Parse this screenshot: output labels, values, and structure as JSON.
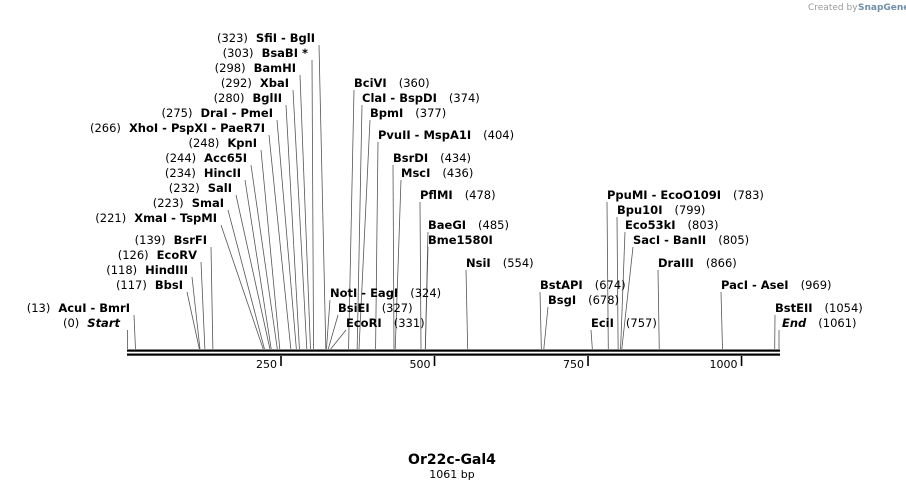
{
  "credit": {
    "prefix": "Created by",
    "brand": "SnapGene"
  },
  "map": {
    "name": "Or22c-Gal4",
    "length_label": "1061 bp",
    "total_bp": 1061,
    "ticks": [
      {
        "bp": 250,
        "label": "250"
      },
      {
        "bp": 500,
        "label": "500"
      },
      {
        "bp": 750,
        "label": "750"
      },
      {
        "bp": 1000,
        "label": "1000"
      }
    ],
    "sites": [
      {
        "id": "start",
        "pos_text": "(0)",
        "names": [
          "Start"
        ],
        "italic": true,
        "bp": 0,
        "side": "left"
      },
      {
        "id": "acui",
        "pos_text": "(13)",
        "names": [
          "AcuI",
          "BmrI"
        ],
        "bp": 13,
        "side": "left"
      },
      {
        "id": "bbsi",
        "pos_text": "(117)",
        "names": [
          "BbsI"
        ],
        "bp": 117,
        "side": "left"
      },
      {
        "id": "hindiii",
        "pos_text": "(118)",
        "names": [
          "HindIII"
        ],
        "bp": 118,
        "side": "left"
      },
      {
        "id": "ecorv",
        "pos_text": "(126)",
        "names": [
          "EcoRV"
        ],
        "bp": 126,
        "side": "left"
      },
      {
        "id": "bsrfi",
        "pos_text": "(139)",
        "names": [
          "BsrFI"
        ],
        "bp": 139,
        "side": "left"
      },
      {
        "id": "xmai",
        "pos_text": "(221)",
        "names": [
          "XmaI",
          "TspMI"
        ],
        "bp": 221,
        "side": "left"
      },
      {
        "id": "smai",
        "pos_text": "(223)",
        "names": [
          "SmaI"
        ],
        "bp": 223,
        "side": "left"
      },
      {
        "id": "sali",
        "pos_text": "(232)",
        "names": [
          "SalI"
        ],
        "bp": 232,
        "side": "left"
      },
      {
        "id": "hincii",
        "pos_text": "(234)",
        "names": [
          "HincII"
        ],
        "bp": 234,
        "side": "left"
      },
      {
        "id": "acc65i",
        "pos_text": "(244)",
        "names": [
          "Acc65I"
        ],
        "bp": 244,
        "side": "left"
      },
      {
        "id": "kpni",
        "pos_text": "(248)",
        "names": [
          "KpnI"
        ],
        "bp": 248,
        "side": "left"
      },
      {
        "id": "xhoi",
        "pos_text": "(266)",
        "names": [
          "XhoI",
          "PspXI",
          "PaeR7I"
        ],
        "bp": 266,
        "side": "left"
      },
      {
        "id": "drai",
        "pos_text": "(275)",
        "names": [
          "DraI",
          "PmeI"
        ],
        "bp": 275,
        "side": "left"
      },
      {
        "id": "bglii",
        "pos_text": "(280)",
        "names": [
          "BglII"
        ],
        "bp": 280,
        "side": "left"
      },
      {
        "id": "xbai",
        "pos_text": "(292)",
        "names": [
          "XbaI"
        ],
        "bp": 292,
        "side": "left"
      },
      {
        "id": "bamhi",
        "pos_text": "(298)",
        "names": [
          "BamHI"
        ],
        "bp": 298,
        "side": "left"
      },
      {
        "id": "bsabi",
        "pos_text": "(303)",
        "names": [
          "BsaBI *"
        ],
        "bp": 303,
        "side": "left"
      },
      {
        "id": "sfii",
        "pos_text": "(323)",
        "names": [
          "SfiI",
          "BglI"
        ],
        "bp": 323,
        "side": "left"
      },
      {
        "id": "ecori",
        "pos_text": "(331)",
        "names": [
          "EcoRI"
        ],
        "bp": 331,
        "side": "right"
      },
      {
        "id": "bsiei",
        "pos_text": "(327)",
        "names": [
          "BsiEI"
        ],
        "bp": 327,
        "side": "right"
      },
      {
        "id": "noti",
        "pos_text": "(324)",
        "names": [
          "NotI",
          "EagI"
        ],
        "bp": 324,
        "side": "right"
      },
      {
        "id": "bcivi",
        "pos_text": "(360)",
        "names": [
          "BciVI"
        ],
        "bp": 360,
        "side": "right"
      },
      {
        "id": "clai",
        "pos_text": "(374)",
        "names": [
          "ClaI",
          "BspDI"
        ],
        "bp": 374,
        "side": "right"
      },
      {
        "id": "bpmi",
        "pos_text": "(377)",
        "names": [
          "BpmI"
        ],
        "bp": 377,
        "side": "right"
      },
      {
        "id": "pvuii",
        "pos_text": "(404)",
        "names": [
          "PvuII",
          "MspA1I"
        ],
        "bp": 404,
        "side": "right"
      },
      {
        "id": "bsrdi",
        "pos_text": "(434)",
        "names": [
          "BsrDI"
        ],
        "bp": 434,
        "side": "right"
      },
      {
        "id": "msci",
        "pos_text": "(436)",
        "names": [
          "MscI"
        ],
        "bp": 436,
        "side": "right"
      },
      {
        "id": "pflmi",
        "pos_text": "(478)",
        "names": [
          "PflMI"
        ],
        "bp": 478,
        "side": "right"
      },
      {
        "id": "baegi",
        "pos_text": "(485)",
        "names": [
          "BaeGI"
        ],
        "bp": 485,
        "side": "right"
      },
      {
        "id": "bme1580i",
        "pos_text": "",
        "names": [
          "Bme1580I"
        ],
        "bp": 485,
        "side": "right"
      },
      {
        "id": "nsii",
        "pos_text": "(554)",
        "names": [
          "NsiI"
        ],
        "bp": 554,
        "side": "right"
      },
      {
        "id": "bsgi",
        "pos_text": "(678)",
        "names": [
          "BsgI"
        ],
        "bp": 678,
        "side": "right"
      },
      {
        "id": "bstapi",
        "pos_text": "(674)",
        "names": [
          "BstAPI"
        ],
        "bp": 674,
        "side": "right"
      },
      {
        "id": "ecii",
        "pos_text": "(757)",
        "names": [
          "EciI"
        ],
        "bp": 757,
        "side": "right"
      },
      {
        "id": "ppumi",
        "pos_text": "(783)",
        "names": [
          "PpuMI",
          "EcoO109I"
        ],
        "bp": 783,
        "side": "right"
      },
      {
        "id": "bpu10i",
        "pos_text": "(799)",
        "names": [
          "Bpu10I"
        ],
        "bp": 799,
        "side": "right"
      },
      {
        "id": "eco53ki",
        "pos_text": "(803)",
        "names": [
          "Eco53kI"
        ],
        "bp": 803,
        "side": "right"
      },
      {
        "id": "saci",
        "pos_text": "(805)",
        "names": [
          "SacI",
          "BanII"
        ],
        "bp": 805,
        "side": "right"
      },
      {
        "id": "draiii",
        "pos_text": "(866)",
        "names": [
          "DraIII"
        ],
        "bp": 866,
        "side": "right"
      },
      {
        "id": "paci",
        "pos_text": "(969)",
        "names": [
          "PacI",
          "AseI"
        ],
        "bp": 969,
        "side": "right"
      },
      {
        "id": "bsteii",
        "pos_text": "(1054)",
        "names": [
          "BstEII"
        ],
        "bp": 1054,
        "side": "right"
      },
      {
        "id": "end",
        "pos_text": "(1061)",
        "names": [
          "End"
        ],
        "italic": true,
        "bp": 1061,
        "side": "right"
      }
    ]
  }
}
